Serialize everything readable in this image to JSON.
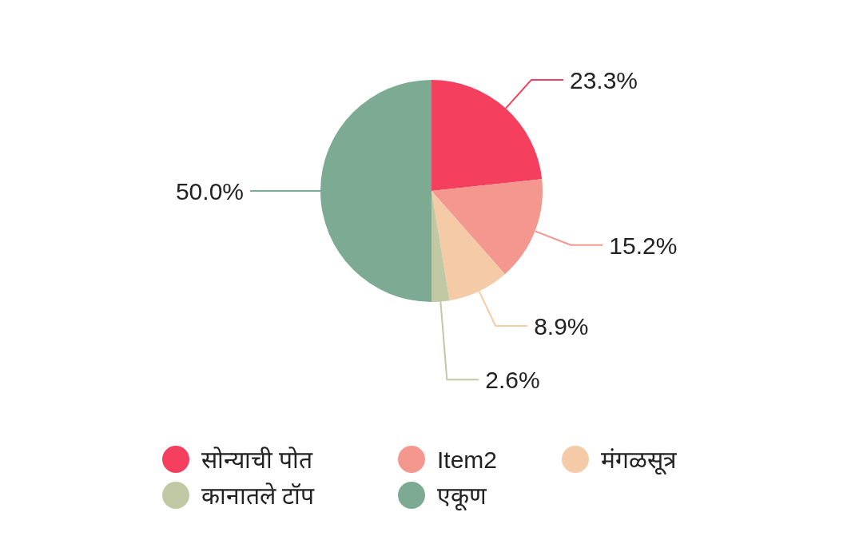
{
  "chart_data": {
    "type": "pie",
    "categories": [
      "सोन्याची पोत",
      "Item2",
      "मंगळसूत्र",
      "कानातले टॉप",
      "एकूण"
    ],
    "values": [
      23.3,
      15.2,
      8.9,
      2.6,
      50.0
    ],
    "colors": [
      "#f43f5e",
      "#f4978e",
      "#f5cba7",
      "#c0c9a4",
      "#7daa92"
    ],
    "value_labels": [
      "23.3%",
      "15.2%",
      "8.9%",
      "2.6%",
      "50.0%"
    ],
    "legend": "bottom"
  }
}
